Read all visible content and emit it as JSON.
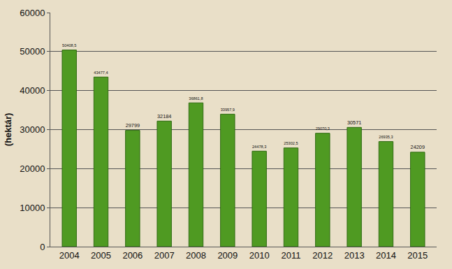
{
  "chart_data": {
    "type": "bar",
    "y_label": "(hektár)",
    "categories": [
      "2004",
      "2005",
      "2006",
      "2007",
      "2008",
      "2009",
      "2010",
      "2011",
      "2012",
      "2013",
      "2014",
      "2015"
    ],
    "values": [
      50408.5,
      43477.4,
      29799,
      32184,
      36861.8,
      33957.9,
      24478.3,
      25302.5,
      29070.3,
      30571,
      26935.3,
      24209
    ],
    "value_labels": [
      "50408,5",
      "43477,4",
      "29799",
      "32184",
      "36861,8",
      "33957,9",
      "24478,3",
      "25302,5",
      "29070,3",
      "30571",
      "26935,3",
      "24209"
    ],
    "color": "#4f9a22",
    "ylim": [
      0,
      60000
    ],
    "yticks": [
      0,
      10000,
      20000,
      30000,
      40000,
      50000,
      60000
    ],
    "grid": true,
    "data_labels": true
  }
}
